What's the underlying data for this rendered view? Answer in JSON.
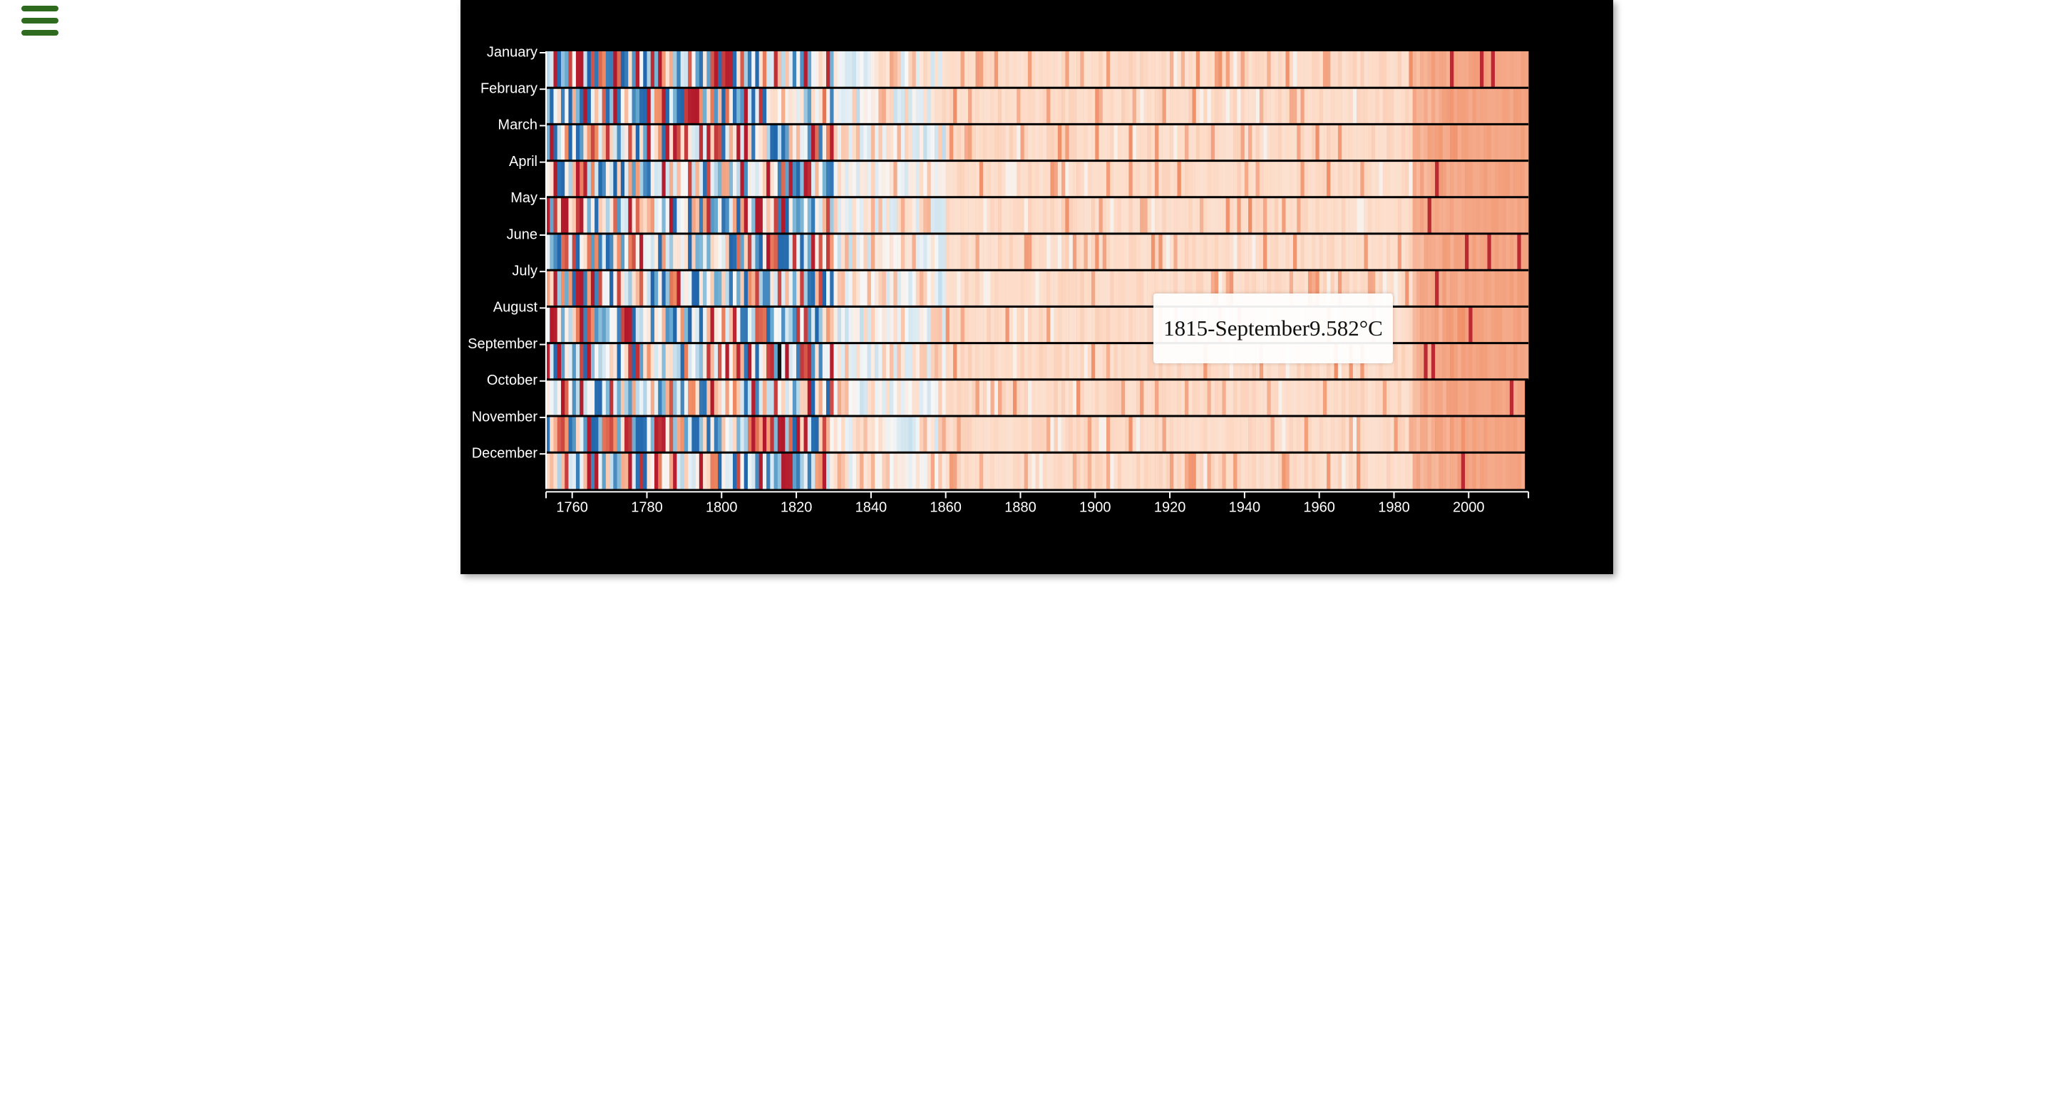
{
  "menu": {
    "icon": "hamburger-menu-icon"
  },
  "tooltip": {
    "year": "1815",
    "separator": " - ",
    "month": "September",
    "value": "9.582",
    "unit": "°C"
  },
  "chart_data": {
    "type": "heatmap",
    "title": "",
    "xlabel": "",
    "ylabel": "",
    "rows": [
      "January",
      "February",
      "March",
      "April",
      "May",
      "June",
      "July",
      "August",
      "September",
      "October",
      "November",
      "December"
    ],
    "x_ticks": [
      1760,
      1780,
      1800,
      1820,
      1840,
      1860,
      1880,
      1900,
      1920,
      1940,
      1960,
      1980,
      2000
    ],
    "x_range": [
      1753,
      2015
    ],
    "last_year_by_row": [
      2015,
      2015,
      2015,
      2015,
      2015,
      2015,
      2015,
      2015,
      2015,
      2014,
      2014,
      2014
    ],
    "color_scale": "diverging blue-white-red (cold to warm)",
    "color_scale_colors": [
      "#2166ac",
      "#67a9cf",
      "#d1e5f0",
      "#f7f7f7",
      "#fddbc7",
      "#ef8a62",
      "#b2182b"
    ],
    "highlighted_cell": {
      "year": 1815,
      "month": "September",
      "value": 9.582
    },
    "cells_description": "Month × year grid of temperature values; early years (1753–1830) show mixed cold blue and warm red cells, the 1830–1980 range is mostly pale salmon, and years after 1990 are consistently warm orange."
  }
}
